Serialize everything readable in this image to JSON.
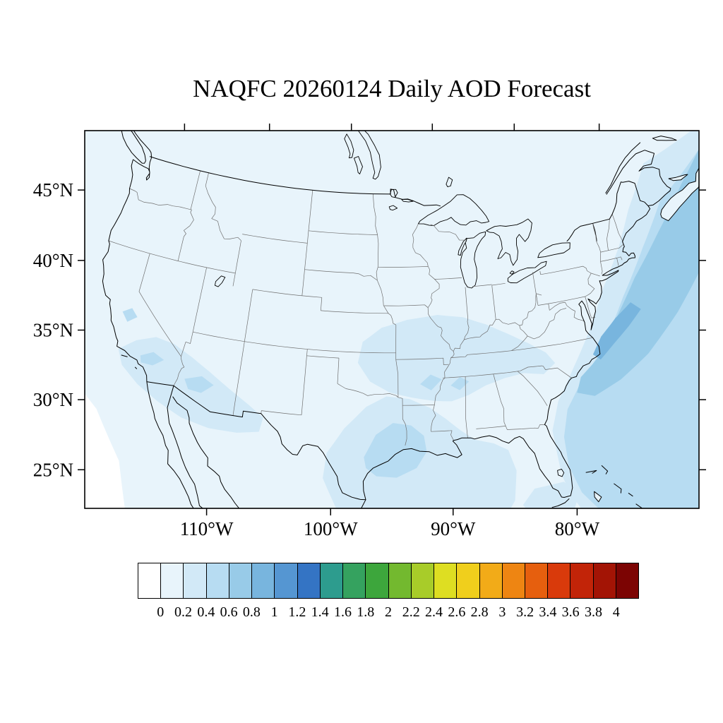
{
  "title": "NAQFC 20260124 Daily AOD Forecast",
  "map": {
    "lat_tick_labels": [
      "45°N",
      "40°N",
      "35°N",
      "30°N",
      "25°N"
    ],
    "lat_tick_values": [
      45,
      40,
      35,
      30,
      25
    ],
    "lon_tick_labels": [
      "110°W",
      "100°W",
      "90°W",
      "80°W"
    ],
    "lon_tick_values": [
      -110,
      -100,
      -90,
      -80
    ],
    "frame_color": "#000000",
    "coast_color": "#000000",
    "state_border_color": "#707070"
  },
  "colorbar": {
    "orientation": "horizontal",
    "tick_labels": [
      "0",
      "0.2",
      "0.4",
      "0.6",
      "0.8",
      "1",
      "1.2",
      "1.4",
      "1.6",
      "1.8",
      "2",
      "2.2",
      "2.4",
      "2.6",
      "2.8",
      "3",
      "3.2",
      "3.4",
      "3.6",
      "3.8",
      "4"
    ],
    "colors": [
      "#ffffff",
      "#e8f4fb",
      "#d2e9f7",
      "#b7dcf2",
      "#98cbe8",
      "#78b5de",
      "#5596d2",
      "#3474c4",
      "#2d9c8e",
      "#35a25f",
      "#3da63c",
      "#73b92f",
      "#a8cc29",
      "#dede22",
      "#f0cf1c",
      "#f2ab18",
      "#ee8512",
      "#e65f0e",
      "#d93a0b",
      "#c22408",
      "#a31405",
      "#7c0403"
    ]
  },
  "chart_data": {
    "type": "heatmap",
    "title": "NAQFC 20260124 Daily AOD Forecast",
    "variable": "Daily AOD (aerosol optical depth) forecast",
    "region": "Continental United States (Lambert conformal map)",
    "colorbar_levels": [
      0,
      0.2,
      0.4,
      0.6,
      0.8,
      1,
      1.2,
      1.4,
      1.6,
      1.8,
      2,
      2.2,
      2.4,
      2.6,
      2.8,
      3,
      3.2,
      3.4,
      3.6,
      3.8,
      4
    ],
    "lat_ticks": [
      "45°N",
      "40°N",
      "35°N",
      "30°N",
      "25°N"
    ],
    "lon_ticks": [
      "110°W",
      "100°W",
      "90°W",
      "80°W"
    ],
    "legend_position": "bottom",
    "field_summary": "AOD mostly 0-0.2 across CONUS; 0.2-0.6 over southern California-Arizona, eastern Texas-Gulf coast and the mid-South; 0.2-1.0 band offshore along the western Atlantic"
  }
}
